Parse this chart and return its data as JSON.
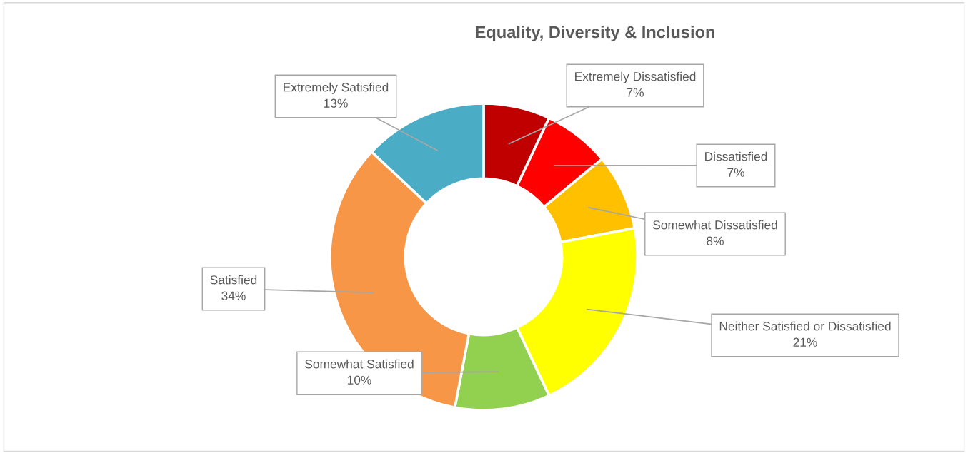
{
  "chart_data": {
    "type": "donut",
    "title": "Equality, Diversity & Inclusion",
    "categories": [
      "Extremely Dissatisfied",
      "Dissatisfied",
      "Somewhat Dissatisfied",
      "Neither Satisfied or Dissatisfied",
      "Somewhat Satisfied",
      "Satisfied",
      "Extremely Satisfied"
    ],
    "values": [
      7,
      7,
      8,
      21,
      10,
      34,
      13
    ],
    "colors": [
      "#c00000",
      "#ff0000",
      "#ffc000",
      "#ffff00",
      "#92d050",
      "#f79646",
      "#4bacc6"
    ],
    "value_labels": [
      "7%",
      "7%",
      "8%",
      "21%",
      "10%",
      "34%",
      "13%"
    ]
  }
}
